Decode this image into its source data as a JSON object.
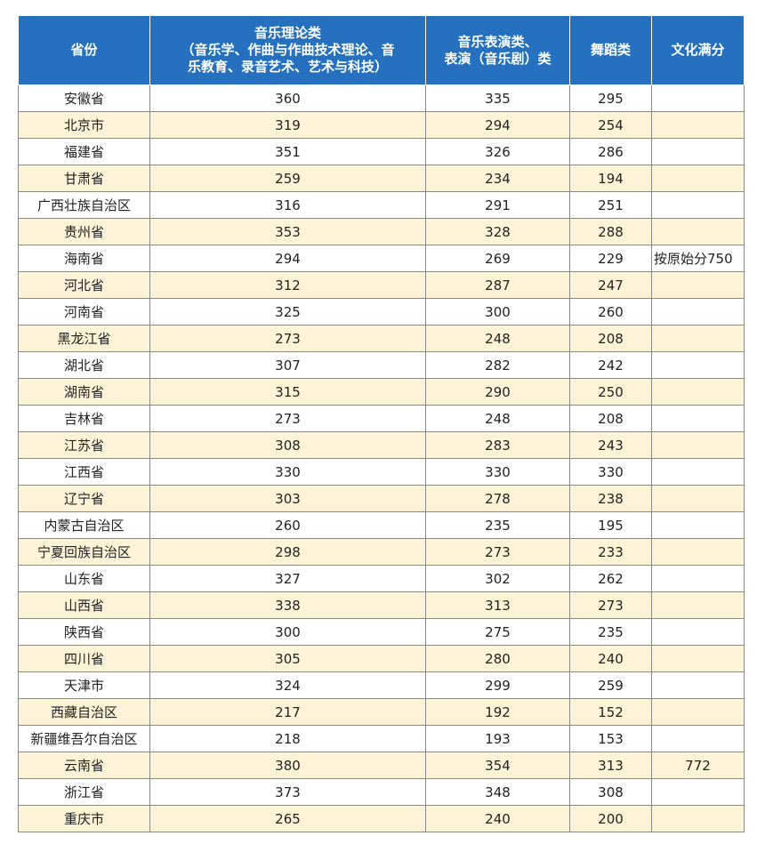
{
  "colors": {
    "header_bg": "#2670c0",
    "header_text": "#ffffff",
    "row_alt_bg": "#fdf3d6",
    "row_bg": "#ffffff",
    "border": "#8a8a8a"
  },
  "table": {
    "headers": {
      "province": "省份",
      "music_theory": [
        "音乐理论类",
        "（音乐学、作曲与作曲技术理论、音",
        "乐教育、录音艺术、艺术与科技）"
      ],
      "performance": [
        "音乐表演类、",
        "表演（音乐剧）类"
      ],
      "dance": "舞蹈类",
      "full_score": "文化满分"
    },
    "rows": [
      {
        "province": "安徽省",
        "music_theory": "360",
        "performance": "335",
        "dance": "295",
        "full_score": ""
      },
      {
        "province": "北京市",
        "music_theory": "319",
        "performance": "294",
        "dance": "254",
        "full_score": ""
      },
      {
        "province": "福建省",
        "music_theory": "351",
        "performance": "326",
        "dance": "286",
        "full_score": ""
      },
      {
        "province": "甘肃省",
        "music_theory": "259",
        "performance": "234",
        "dance": "194",
        "full_score": ""
      },
      {
        "province": "广西壮族自治区",
        "music_theory": "316",
        "performance": "291",
        "dance": "251",
        "full_score": ""
      },
      {
        "province": "贵州省",
        "music_theory": "353",
        "performance": "328",
        "dance": "288",
        "full_score": ""
      },
      {
        "province": "海南省",
        "music_theory": "294",
        "performance": "269",
        "dance": "229",
        "full_score": "按原始分750"
      },
      {
        "province": "河北省",
        "music_theory": "312",
        "performance": "287",
        "dance": "247",
        "full_score": ""
      },
      {
        "province": "河南省",
        "music_theory": "325",
        "performance": "300",
        "dance": "260",
        "full_score": ""
      },
      {
        "province": "黑龙江省",
        "music_theory": "273",
        "performance": "248",
        "dance": "208",
        "full_score": ""
      },
      {
        "province": "湖北省",
        "music_theory": "307",
        "performance": "282",
        "dance": "242",
        "full_score": ""
      },
      {
        "province": "湖南省",
        "music_theory": "315",
        "performance": "290",
        "dance": "250",
        "full_score": ""
      },
      {
        "province": "吉林省",
        "music_theory": "273",
        "performance": "248",
        "dance": "208",
        "full_score": ""
      },
      {
        "province": "江苏省",
        "music_theory": "308",
        "performance": "283",
        "dance": "243",
        "full_score": ""
      },
      {
        "province": "江西省",
        "music_theory": "330",
        "performance": "330",
        "dance": "330",
        "full_score": ""
      },
      {
        "province": "辽宁省",
        "music_theory": "303",
        "performance": "278",
        "dance": "238",
        "full_score": ""
      },
      {
        "province": "内蒙古自治区",
        "music_theory": "260",
        "performance": "235",
        "dance": "195",
        "full_score": ""
      },
      {
        "province": "宁夏回族自治区",
        "music_theory": "298",
        "performance": "273",
        "dance": "233",
        "full_score": ""
      },
      {
        "province": "山东省",
        "music_theory": "327",
        "performance": "302",
        "dance": "262",
        "full_score": ""
      },
      {
        "province": "山西省",
        "music_theory": "338",
        "performance": "313",
        "dance": "273",
        "full_score": ""
      },
      {
        "province": "陕西省",
        "music_theory": "300",
        "performance": "275",
        "dance": "235",
        "full_score": ""
      },
      {
        "province": "四川省",
        "music_theory": "305",
        "performance": "280",
        "dance": "240",
        "full_score": ""
      },
      {
        "province": "天津市",
        "music_theory": "324",
        "performance": "299",
        "dance": "259",
        "full_score": ""
      },
      {
        "province": "西藏自治区",
        "music_theory": "217",
        "performance": "192",
        "dance": "152",
        "full_score": ""
      },
      {
        "province": "新疆维吾尔自治区",
        "music_theory": "218",
        "performance": "193",
        "dance": "153",
        "full_score": ""
      },
      {
        "province": "云南省",
        "music_theory": "380",
        "performance": "354",
        "dance": "313",
        "full_score": "772"
      },
      {
        "province": "浙江省",
        "music_theory": "373",
        "performance": "348",
        "dance": "308",
        "full_score": ""
      },
      {
        "province": "重庆市",
        "music_theory": "265",
        "performance": "240",
        "dance": "200",
        "full_score": ""
      }
    ]
  }
}
